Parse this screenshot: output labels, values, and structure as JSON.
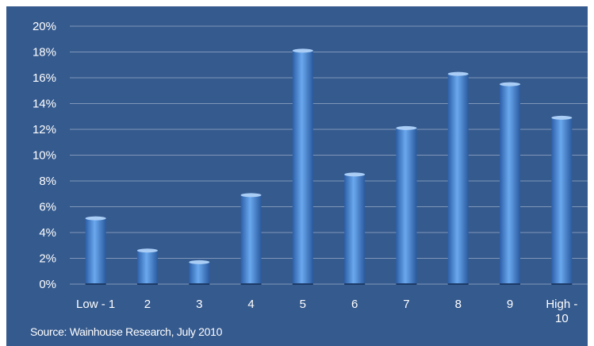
{
  "chart_data": {
    "type": "bar",
    "categories": [
      "Low - 1",
      "2",
      "3",
      "4",
      "5",
      "6",
      "7",
      "8",
      "9",
      "High - 10"
    ],
    "values": [
      5.1,
      2.6,
      1.7,
      6.9,
      18.1,
      8.5,
      12.1,
      16.3,
      15.5,
      12.9
    ],
    "ylim": [
      0,
      20
    ],
    "yticks": [
      0,
      2,
      4,
      6,
      8,
      10,
      12,
      14,
      16,
      18,
      20
    ],
    "ytick_labels": [
      "0%",
      "2%",
      "4%",
      "6%",
      "8%",
      "10%",
      "12%",
      "14%",
      "16%",
      "18%",
      "20%"
    ],
    "grid": true,
    "title": "",
    "xlabel": "",
    "ylabel": ""
  },
  "source_note": "Source: Wainhouse Research, July 2010",
  "colors": {
    "background": "#355a8e",
    "bar": "#4a86d4",
    "gridline": "#7f97b8",
    "text": "#ffffff"
  }
}
